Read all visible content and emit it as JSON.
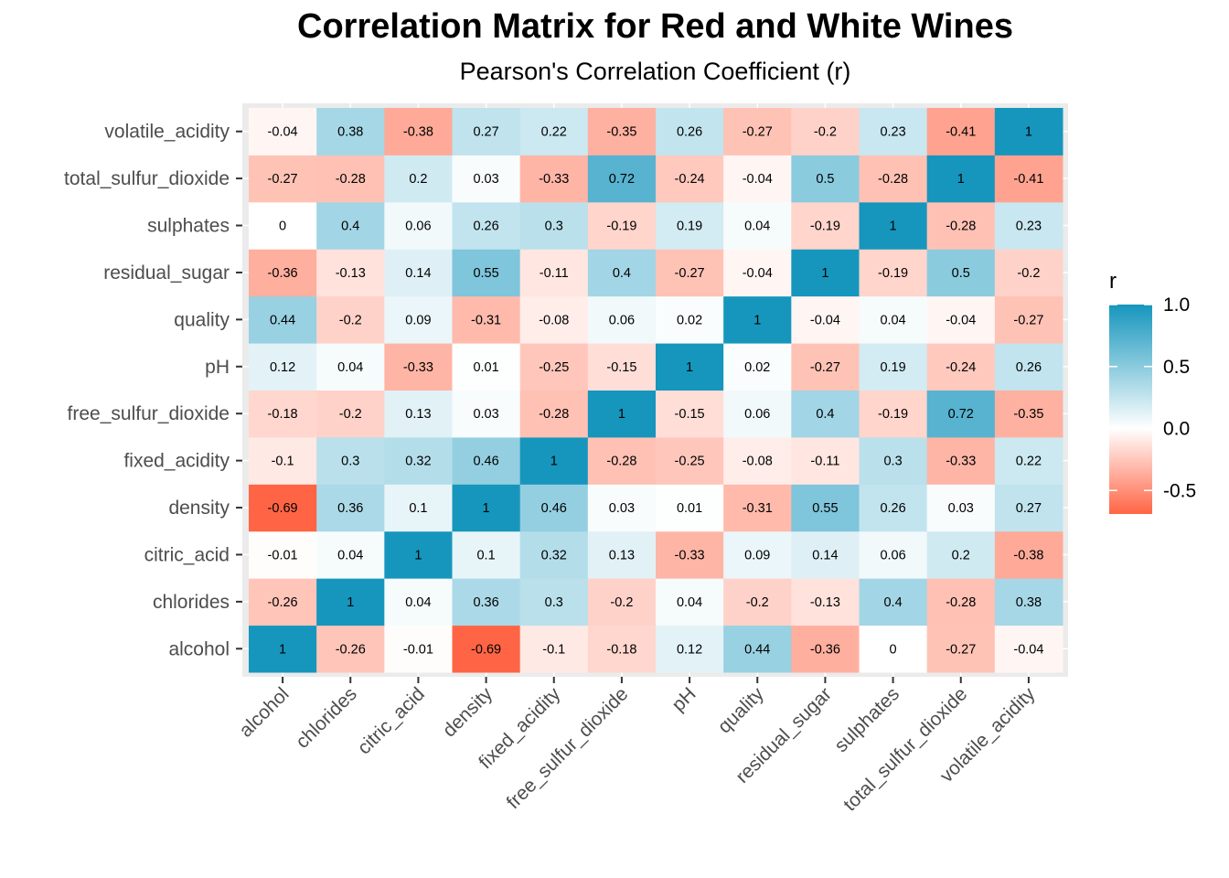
{
  "chart_data": {
    "type": "heatmap",
    "title": "Correlation Matrix for Red and White Wines",
    "subtitle": "Pearson's Correlation Coefficient (r)",
    "xlabel": "",
    "ylabel": "",
    "variables": [
      "alcohol",
      "chlorides",
      "citric_acid",
      "density",
      "fixed_acidity",
      "free_sulfur_dioxide",
      "pH",
      "quality",
      "residual_sugar",
      "sulphates",
      "total_sulfur_dioxide",
      "volatile_acidity"
    ],
    "x_order": "left-to-right",
    "y_order": "bottom-to-top",
    "matrix": [
      [
        1,
        -0.26,
        -0.01,
        -0.69,
        -0.1,
        -0.18,
        0.12,
        0.44,
        -0.36,
        0,
        -0.27,
        -0.04
      ],
      [
        -0.26,
        1,
        0.04,
        0.36,
        0.3,
        -0.2,
        0.04,
        -0.2,
        -0.13,
        0.4,
        -0.28,
        0.38
      ],
      [
        -0.01,
        0.04,
        1,
        0.1,
        0.32,
        0.13,
        -0.33,
        0.09,
        0.14,
        0.06,
        0.2,
        -0.38
      ],
      [
        -0.69,
        0.36,
        0.1,
        1,
        0.46,
        0.03,
        0.01,
        -0.31,
        0.55,
        0.26,
        0.03,
        0.27
      ],
      [
        -0.1,
        0.3,
        0.32,
        0.46,
        1,
        -0.28,
        -0.25,
        -0.08,
        -0.11,
        0.3,
        -0.33,
        0.22
      ],
      [
        -0.18,
        -0.2,
        0.13,
        0.03,
        -0.28,
        1,
        -0.15,
        0.06,
        0.4,
        -0.19,
        0.72,
        -0.35
      ],
      [
        0.12,
        0.04,
        -0.33,
        0.01,
        -0.25,
        -0.15,
        1,
        0.02,
        -0.27,
        0.19,
        -0.24,
        0.26
      ],
      [
        0.44,
        -0.2,
        0.09,
        -0.31,
        -0.08,
        0.06,
        0.02,
        1,
        -0.04,
        0.04,
        -0.04,
        -0.27
      ],
      [
        -0.36,
        -0.13,
        0.14,
        0.55,
        -0.11,
        0.4,
        -0.27,
        -0.04,
        1,
        -0.19,
        0.5,
        -0.2
      ],
      [
        0,
        0.4,
        0.06,
        0.26,
        0.3,
        -0.19,
        0.19,
        0.04,
        -0.19,
        1,
        -0.28,
        0.23
      ],
      [
        -0.27,
        -0.28,
        0.2,
        0.03,
        -0.33,
        0.72,
        -0.24,
        -0.04,
        0.5,
        -0.28,
        1,
        -0.41
      ],
      [
        -0.04,
        0.38,
        -0.38,
        0.27,
        0.22,
        -0.35,
        0.26,
        -0.27,
        -0.2,
        0.23,
        -0.41,
        1
      ]
    ],
    "color_scale": {
      "low": -0.69,
      "mid": 0,
      "high": 1,
      "low_color": "#ff6545",
      "mid_color": "#ffffff",
      "high_color": "#1696bd"
    },
    "legend": {
      "title": "r",
      "placement": "right",
      "ticks": [
        1.0,
        0.5,
        0.0,
        -0.5
      ],
      "tick_labels": [
        "1.0",
        "0.5",
        "0.0",
        "-0.5"
      ]
    },
    "panel_background": "#ebebeb",
    "grid": true
  }
}
